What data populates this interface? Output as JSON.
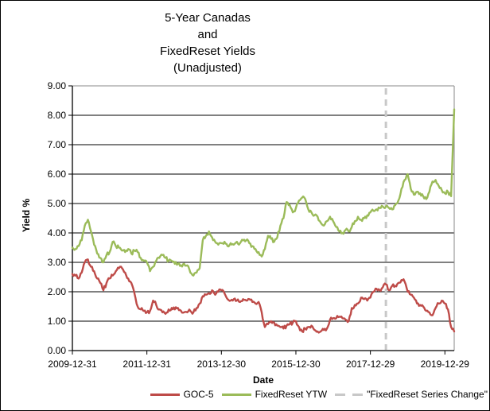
{
  "chart_data": {
    "type": "line",
    "title_lines": [
      "5-Year Canadas",
      "and",
      "FixedReset Yields",
      "(Unadjusted)"
    ],
    "ylabel": "Yield %",
    "xlabel": "Date",
    "ylim": [
      0,
      9
    ],
    "grid": "horizontal",
    "legend_position": "bottom",
    "x_unit": "month",
    "x_start": "2009-12-31",
    "x_end": "2020-03",
    "y_ticks": [
      "0.00",
      "1.00",
      "2.00",
      "3.00",
      "4.00",
      "5.00",
      "6.00",
      "7.00",
      "8.00",
      "9.00"
    ],
    "x_ticks": [
      {
        "label": "2009-12-31",
        "index": 0
      },
      {
        "label": "2011-12-31",
        "index": 24
      },
      {
        "label": "2013-12-30",
        "index": 48
      },
      {
        "label": "2015-12-30",
        "index": 72
      },
      {
        "label": "2017-12-29",
        "index": 96
      },
      {
        "label": "2019-12-29",
        "index": 120
      }
    ],
    "series": [
      {
        "name": "GOC-5",
        "color": "#BE4B48",
        "style": "solid",
        "values": [
          2.6,
          2.55,
          2.45,
          2.65,
          3.0,
          3.1,
          2.85,
          2.7,
          2.45,
          2.3,
          2.05,
          2.3,
          2.45,
          2.55,
          2.7,
          2.8,
          2.8,
          2.65,
          2.45,
          2.3,
          1.95,
          1.5,
          1.4,
          1.35,
          1.3,
          1.35,
          1.7,
          1.55,
          1.4,
          1.3,
          1.25,
          1.4,
          1.45,
          1.4,
          1.45,
          1.35,
          1.3,
          1.3,
          1.35,
          1.3,
          1.45,
          1.6,
          1.85,
          1.9,
          1.95,
          2.05,
          1.9,
          2.0,
          2.05,
          1.95,
          1.75,
          1.7,
          1.75,
          1.7,
          1.65,
          1.75,
          1.7,
          1.75,
          1.65,
          1.6,
          1.65,
          1.3,
          0.8,
          0.9,
          1.0,
          0.95,
          0.85,
          0.8,
          0.75,
          0.85,
          0.9,
          0.95,
          1.0,
          0.8,
          0.65,
          0.75,
          0.8,
          0.85,
          0.7,
          0.65,
          0.65,
          0.7,
          0.75,
          1.05,
          1.1,
          1.1,
          1.15,
          1.1,
          1.05,
          1.0,
          1.45,
          1.55,
          1.6,
          1.8,
          1.75,
          1.7,
          1.8,
          2.0,
          2.1,
          2.05,
          2.15,
          2.25,
          2.05,
          2.2,
          2.2,
          2.3,
          2.4,
          2.35,
          2.0,
          1.9,
          1.8,
          1.6,
          1.55,
          1.5,
          1.35,
          1.3,
          1.2,
          1.45,
          1.6,
          1.7,
          1.6,
          1.4,
          0.8,
          0.65
        ]
      },
      {
        "name": "FixedReset YTW",
        "color": "#9BBB59",
        "style": "solid",
        "values": [
          3.5,
          3.45,
          3.55,
          3.75,
          4.25,
          4.45,
          4.05,
          3.6,
          3.3,
          3.15,
          3.0,
          3.25,
          3.35,
          3.7,
          3.55,
          3.5,
          3.4,
          3.35,
          3.45,
          3.3,
          3.4,
          3.35,
          3.15,
          3.05,
          3.0,
          2.7,
          2.85,
          3.05,
          3.15,
          3.25,
          3.15,
          3.05,
          3.05,
          2.95,
          2.95,
          2.9,
          2.95,
          2.9,
          2.65,
          2.55,
          2.65,
          2.8,
          3.75,
          3.9,
          4.05,
          3.85,
          3.7,
          3.6,
          3.65,
          3.7,
          3.55,
          3.65,
          3.6,
          3.7,
          3.65,
          3.75,
          3.75,
          3.65,
          3.55,
          3.45,
          3.35,
          3.2,
          3.45,
          3.9,
          3.8,
          3.7,
          3.85,
          4.25,
          4.5,
          5.05,
          4.95,
          4.7,
          4.85,
          5.1,
          5.2,
          5.15,
          4.8,
          4.7,
          4.6,
          4.55,
          4.35,
          4.25,
          4.4,
          4.55,
          4.4,
          4.2,
          4.05,
          4.0,
          4.1,
          4.05,
          4.2,
          4.4,
          4.55,
          4.45,
          4.5,
          4.6,
          4.7,
          4.75,
          4.8,
          4.85,
          4.9,
          4.9,
          4.85,
          4.8,
          4.95,
          5.1,
          5.5,
          5.8,
          6.0,
          5.5,
          5.3,
          5.4,
          5.35,
          5.25,
          5.15,
          5.4,
          5.75,
          5.8,
          5.6,
          5.45,
          5.35,
          5.4,
          5.25,
          8.2
        ]
      }
    ],
    "annotation": {
      "label": "\"FixedReset Series Change\"",
      "color": "#C8C8C8",
      "style": "dashed",
      "x_index": 101,
      "x_date": "2018-05"
    }
  }
}
